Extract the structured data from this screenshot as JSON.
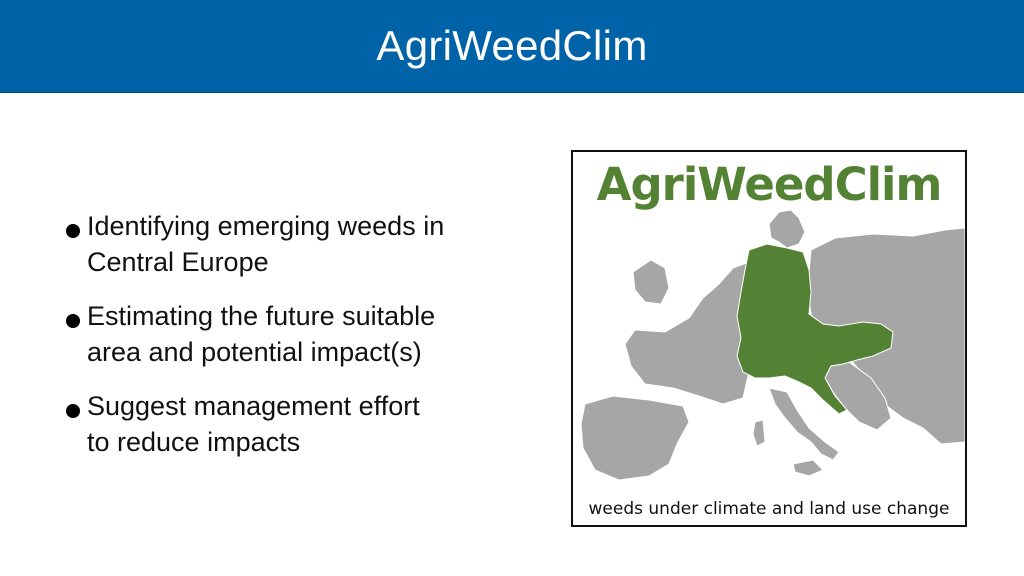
{
  "slide": {
    "title": "AgriWeedClim",
    "bullets": [
      {
        "line1": "Identifying emerging weeds in",
        "line2": "Central Europe"
      },
      {
        "line1": "Estimating the future suitable",
        "line2": "area and potential impact(s)"
      },
      {
        "line1": "Suggest management effort",
        "line2": "to reduce impacts"
      }
    ]
  },
  "logo": {
    "title": "AgriWeedClim",
    "caption": "weeds under climate and land use change",
    "icon": "europe-map-icon",
    "colors": {
      "title_green": "#548235",
      "highlight_green": "#548235",
      "land_gray": "#a6a6a6"
    }
  },
  "theme": {
    "title_bar_color": "#0063a8",
    "title_text_color": "#ffffff"
  }
}
